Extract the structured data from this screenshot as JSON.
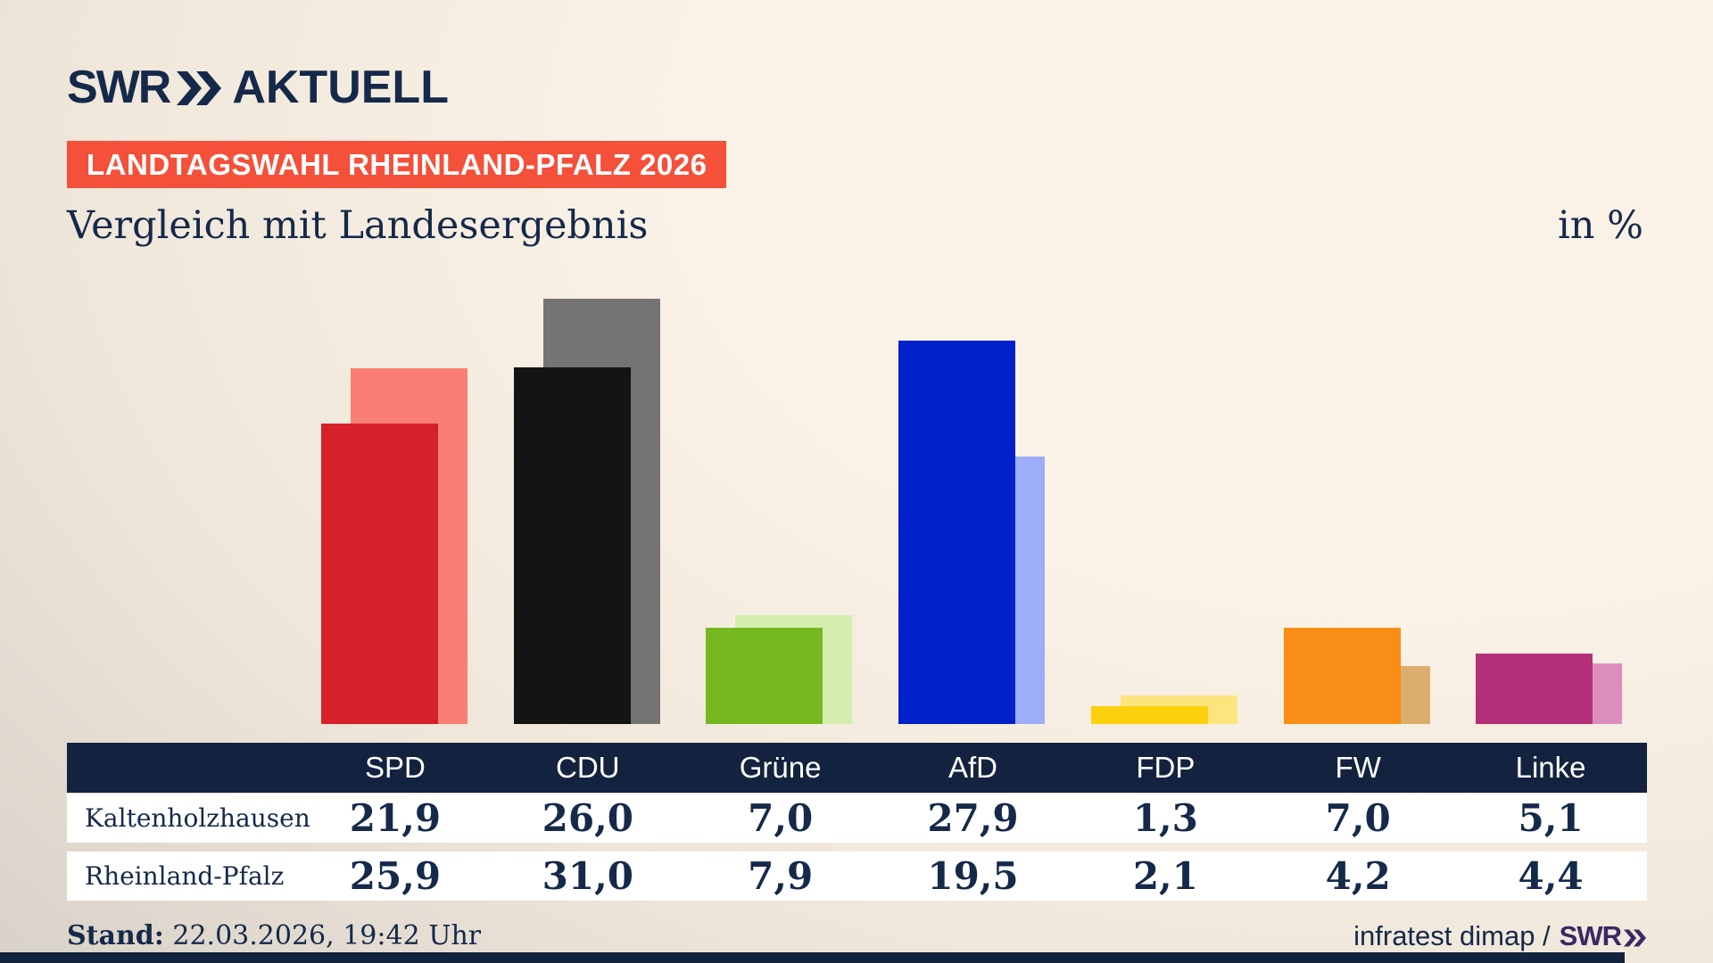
{
  "header": {
    "logo_swr": "SWR",
    "logo_aktuell": "AKTUELL",
    "badge_label": "LANDTAGSWAHL RHEINLAND-PFALZ 2026",
    "badge_bg": "#f4503a",
    "title": "Vergleich mit Landesergebnis",
    "unit_label": "in %"
  },
  "colors": {
    "navy": "#15294a",
    "table_header_bg": "#13233f",
    "bottom_bar": "#12233e",
    "brand_purple": "#3c2766",
    "badge_red": "#f4503a"
  },
  "parties": [
    {
      "name": "SPD",
      "color": "#d6202a",
      "light": "#f97f76"
    },
    {
      "name": "CDU",
      "color": "#141414",
      "light": "#767472"
    },
    {
      "name": "Grüne",
      "color": "#75b81f",
      "light": "#d4eeae"
    },
    {
      "name": "AfD",
      "color": "#0220c8",
      "light": "#9cadfa"
    },
    {
      "name": "FDP",
      "color": "#fdd00e",
      "light": "#fde47d"
    },
    {
      "name": "FW",
      "color": "#f98e16",
      "light": "#dcae6e"
    },
    {
      "name": "Linke",
      "color": "#b52f7a",
      "light": "#dd8ebc"
    }
  ],
  "chart_data": {
    "type": "bar",
    "categories": [
      "SPD",
      "CDU",
      "Grüne",
      "AfD",
      "FDP",
      "FW",
      "Linke"
    ],
    "series": [
      {
        "name": "Kaltenholzhausen",
        "role": "front",
        "values": [
          21.9,
          26.0,
          7.0,
          27.9,
          1.3,
          7.0,
          5.1
        ]
      },
      {
        "name": "Rheinland-Pfalz",
        "role": "back",
        "values": [
          25.9,
          31.0,
          7.9,
          19.5,
          2.1,
          4.2,
          4.4
        ]
      }
    ],
    "title": "Vergleich mit Landesergebnis",
    "xlabel": "",
    "ylabel": "in %",
    "ylim": [
      0,
      31
    ],
    "grid": false,
    "legend_position": "table-below",
    "value_format": "comma-decimal"
  },
  "table": {
    "header": [
      "SPD",
      "CDU",
      "Grüne",
      "AfD",
      "FDP",
      "FW",
      "Linke"
    ],
    "rows": [
      {
        "label": "Kaltenholzhausen",
        "values": [
          "21,9",
          "26,0",
          "7,0",
          "27,9",
          "1,3",
          "7,0",
          "5,1"
        ]
      },
      {
        "label": "Rheinland-Pfalz",
        "values": [
          "25,9",
          "31,0",
          "7,9",
          "19,5",
          "2,1",
          "4,2",
          "4,4"
        ]
      }
    ]
  },
  "footer": {
    "stand_label": "Stand:",
    "stand_value": "22.03.2026, 19:42 Uhr",
    "source_text": "infratest dimap /",
    "source_brand": "SWR"
  }
}
